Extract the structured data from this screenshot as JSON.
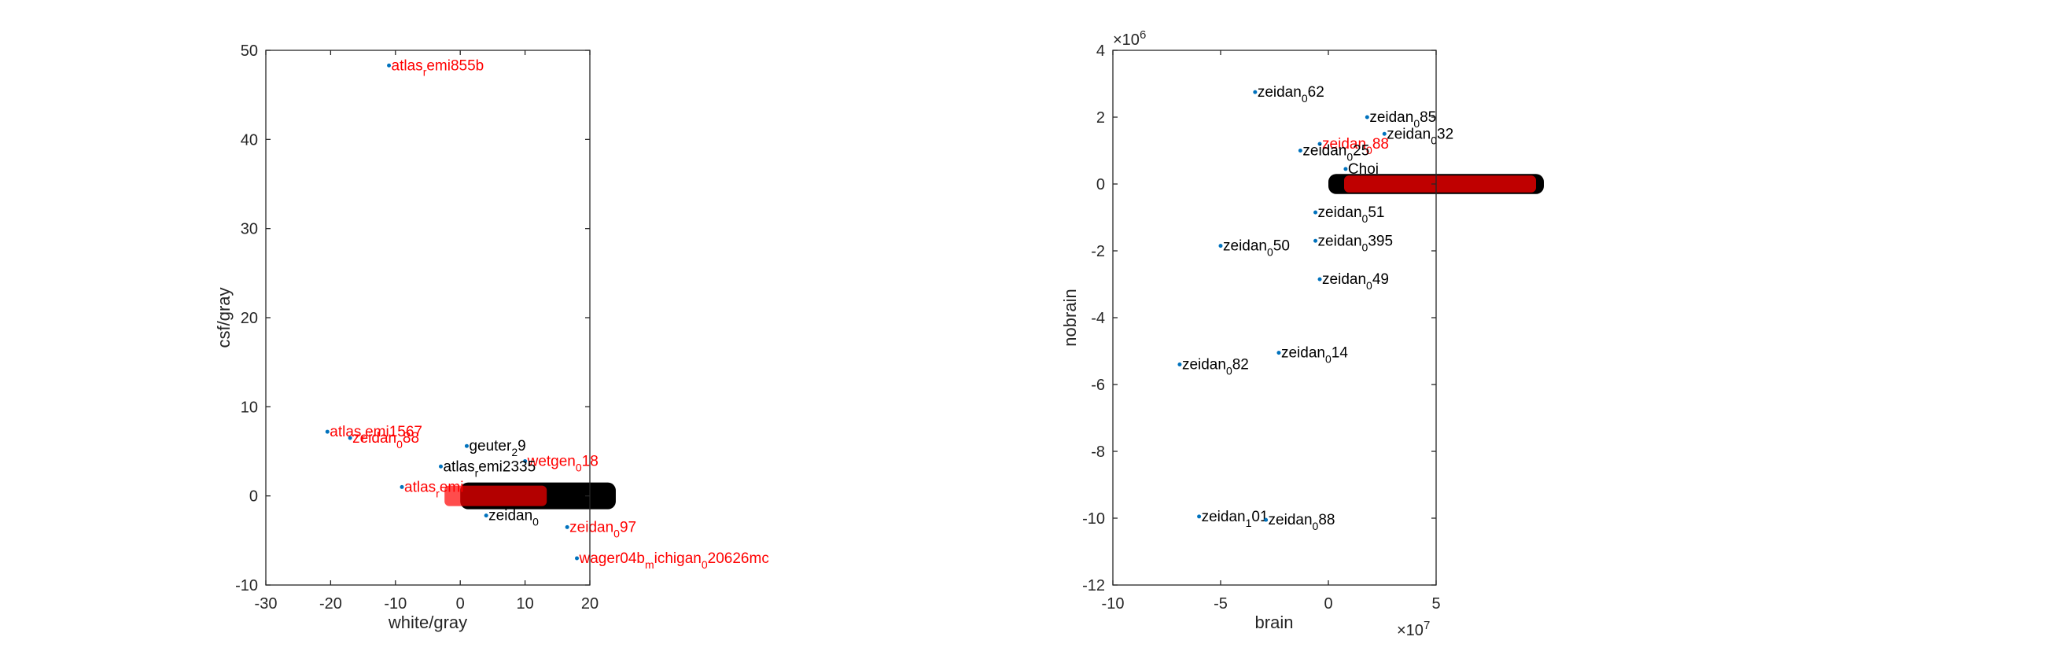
{
  "colors": {
    "axis": "#262626",
    "point": "#0072BD",
    "label_black": "#000000",
    "label_red": "#ff0000"
  },
  "chart_data": [
    {
      "type": "scatter",
      "title": "",
      "xlabel": "white/gray",
      "ylabel": "csf/gray",
      "xlim": [
        -30,
        20
      ],
      "ylim": [
        -10,
        50
      ],
      "xticks": [
        "-30",
        "-20",
        "-10",
        "0",
        "10",
        "20"
      ],
      "yticks": [
        "-10",
        "0",
        "10",
        "20",
        "30",
        "40",
        "50"
      ],
      "grid": false,
      "cluster": {
        "x_range": [
          0,
          24
        ],
        "y_range": [
          -1.5,
          1.5
        ],
        "note": "dense overlapping black labels"
      },
      "points": [
        {
          "x": -11,
          "y": 48.3,
          "label": "atlas_remi855b",
          "color": "red"
        },
        {
          "x": -20.5,
          "y": 7.2,
          "label": "atlas_remi1567",
          "color": "red"
        },
        {
          "x": -17,
          "y": 6.5,
          "label": "zeidan_088",
          "color": "red"
        },
        {
          "x": 1,
          "y": 5.6,
          "label": "geuter_29",
          "color": "black"
        },
        {
          "x": 10,
          "y": 3.9,
          "label": "wetgen_018",
          "color": "red"
        },
        {
          "x": -3,
          "y": 3.3,
          "label": "atlas_remi2335",
          "color": "black"
        },
        {
          "x": -9,
          "y": 1.0,
          "label": "atlas_remi",
          "color": "red"
        },
        {
          "x": 4,
          "y": -2.2,
          "label": "zeidan_0",
          "color": "black"
        },
        {
          "x": 16.5,
          "y": -3.5,
          "label": "zeidan_097",
          "color": "red"
        },
        {
          "x": 18,
          "y": -7.0,
          "label": "wager04b_michigan_020626mc",
          "color": "red"
        }
      ]
    },
    {
      "type": "scatter",
      "title": "",
      "xlabel": "brain",
      "ylabel": "nobrain",
      "xlim": [
        -10,
        5
      ],
      "ylim": [
        -12,
        4
      ],
      "x_multiplier": "×10^7",
      "y_multiplier": "×10^6",
      "xticks": [
        "-10",
        "-5",
        "0",
        "5"
      ],
      "yticks": [
        "-12",
        "-10",
        "-8",
        "-6",
        "-4",
        "-2",
        "0",
        "2",
        "4"
      ],
      "grid": false,
      "cluster": {
        "x_range": [
          0,
          10
        ],
        "y_range": [
          -0.3,
          0.3
        ],
        "note": "dense overlapping black and red labels"
      },
      "points": [
        {
          "x": -3.4,
          "y": 2.75,
          "label": "zeidan_062",
          "color": "black"
        },
        {
          "x": 1.8,
          "y": 2.0,
          "label": "zeidan_085",
          "color": "black"
        },
        {
          "x": 2.6,
          "y": 1.5,
          "label": "zeidan_032",
          "color": "black"
        },
        {
          "x": -0.4,
          "y": 1.2,
          "label": "zeidan_088",
          "color": "red"
        },
        {
          "x": -1.3,
          "y": 1.0,
          "label": "zeidan_025",
          "color": "black"
        },
        {
          "x": 0.8,
          "y": 0.45,
          "label": "Choi",
          "color": "black"
        },
        {
          "x": -0.6,
          "y": -0.85,
          "label": "zeidan_051",
          "color": "black"
        },
        {
          "x": -5.0,
          "y": -1.85,
          "label": "zeidan_050",
          "color": "black"
        },
        {
          "x": -0.6,
          "y": -1.7,
          "label": "zeidan_0395",
          "color": "black"
        },
        {
          "x": -0.4,
          "y": -2.85,
          "label": "zeidan_049",
          "color": "black"
        },
        {
          "x": -6.9,
          "y": -5.4,
          "label": "zeidan_082",
          "color": "black"
        },
        {
          "x": -2.3,
          "y": -5.05,
          "label": "zeidan_014",
          "color": "black"
        },
        {
          "x": -6.0,
          "y": -9.95,
          "label": "zeidan_101",
          "color": "black"
        },
        {
          "x": -2.9,
          "y": -10.05,
          "label": "zeidan_088",
          "color": "black"
        }
      ]
    }
  ]
}
